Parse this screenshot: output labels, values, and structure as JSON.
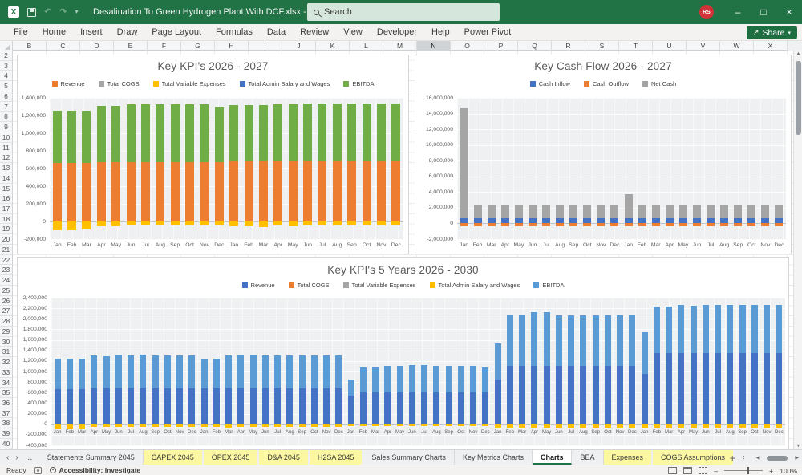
{
  "window": {
    "title": "Desalination To Green Hydrogen Plant With DCF.xlsx  -  Excel",
    "search_placeholder": "Search",
    "avatar": "RS"
  },
  "icons": {
    "app": "X",
    "minimize": "–",
    "restore": "□",
    "close": "×",
    "undo": "↶",
    "redo": "↷",
    "dropdown": "▾",
    "share": "↗",
    "tab_prev": "‹",
    "tab_next": "›",
    "tab_list": "…",
    "overflow": "…",
    "add_sheet": "+",
    "kebab": "…",
    "scroll_left": "◀",
    "scroll_right": "▶",
    "scroll_up": "▲",
    "scroll_down": "▼"
  },
  "ribbon": {
    "tabs": [
      "File",
      "Home",
      "Insert",
      "Draw",
      "Page Layout",
      "Formulas",
      "Data",
      "Review",
      "View",
      "Developer",
      "Help",
      "Power Pivot"
    ],
    "share_label": "Share"
  },
  "grid": {
    "columns": [
      "B",
      "C",
      "D",
      "E",
      "F",
      "G",
      "H",
      "I",
      "J",
      "K",
      "L",
      "M",
      "N",
      "O",
      "P",
      "Q",
      "R",
      "S",
      "T",
      "U",
      "V",
      "W",
      "X"
    ],
    "selected_column": "N",
    "row_start": 2,
    "row_end": 41
  },
  "sheet_tabs": {
    "tabs": [
      {
        "label": "Statements Summary 2045",
        "style": "plain"
      },
      {
        "label": "CAPEX 2045",
        "style": "yellow"
      },
      {
        "label": "OPEX 2045",
        "style": "yellow"
      },
      {
        "label": "D&A 2045",
        "style": "yellow"
      },
      {
        "label": "H2SA 2045",
        "style": "yellow"
      },
      {
        "label": "Sales Summary Charts",
        "style": "plain"
      },
      {
        "label": "Key Metrics Charts",
        "style": "plain"
      },
      {
        "label": "Charts",
        "style": "active"
      },
      {
        "label": "BEA",
        "style": "plain"
      },
      {
        "label": "Expenses",
        "style": "yellow"
      },
      {
        "label": "COGS Assumptions",
        "style": "yellow"
      }
    ]
  },
  "status_bar": {
    "ready": "Ready",
    "accessibility": "Accessibility: Investigate",
    "zoom_level": "100%"
  },
  "chart_data": [
    {
      "type": "stacked-bar",
      "title": "Key KPI's 2026 - 2027",
      "months": [
        "Jan",
        "Feb",
        "Mar",
        "Apr",
        "May",
        "Jun",
        "Jul",
        "Aug",
        "Sep",
        "Oct",
        "Nov",
        "Dec"
      ],
      "years": 2,
      "ylim": [
        -200000,
        1400000
      ],
      "ystep": 200000,
      "grid": true,
      "legend_position": "top",
      "legend": [
        {
          "label": "Revenue",
          "color": "#ED7D31"
        },
        {
          "label": "Total COGS",
          "color": "#A5A5A5"
        },
        {
          "label": "Total Variable Expenses",
          "color": "#FFC000"
        },
        {
          "label": "Total Admin Salary and Wages",
          "color": "#4472C4"
        },
        {
          "label": "EBITDA",
          "color": "#70AD47"
        }
      ],
      "series": [
        {
          "name": "Revenue",
          "color": "#ED7D31",
          "values": [
            665000,
            665000,
            665000,
            675000,
            675000,
            675000,
            675000,
            675000,
            675000,
            675000,
            675000,
            675000,
            680000,
            680000,
            680000,
            680000,
            680000,
            680000,
            680000,
            680000,
            680000,
            680000,
            680000,
            680000
          ]
        },
        {
          "name": "EBITDA",
          "color": "#70AD47",
          "values": [
            590000,
            590000,
            590000,
            635000,
            630000,
            650000,
            650000,
            655000,
            655000,
            655000,
            655000,
            625000,
            640000,
            640000,
            640000,
            650000,
            650000,
            655000,
            655000,
            655000,
            655000,
            655000,
            655000,
            655000
          ]
        },
        {
          "name": "Total Variable Expenses",
          "color": "#FFC000",
          "values": [
            -100000,
            -100000,
            -95000,
            -50000,
            -55000,
            -40000,
            -40000,
            -40000,
            -45000,
            -45000,
            -45000,
            -45000,
            -55000,
            -55000,
            -65000,
            -45000,
            -50000,
            -45000,
            -45000,
            -45000,
            -45000,
            -45000,
            -45000,
            -45000
          ]
        },
        {
          "name": "Total COGS",
          "color": "#A5A5A5",
          "values": []
        },
        {
          "name": "Total Admin Salary and Wages",
          "color": "#4472C4",
          "values": []
        }
      ]
    },
    {
      "type": "stacked-bar",
      "title": "Key Cash Flow 2026 - 2027",
      "months": [
        "Jan",
        "Feb",
        "Mar",
        "Apr",
        "May",
        "Jun",
        "Jul",
        "Aug",
        "Sep",
        "Oct",
        "Nov",
        "Dec"
      ],
      "years": 2,
      "ylim": [
        -2000000,
        16000000
      ],
      "ystep": 2000000,
      "grid": true,
      "legend_position": "top",
      "legend": [
        {
          "label": "Cash Inflow",
          "color": "#4472C4"
        },
        {
          "label": "Cash Outflow",
          "color": "#ED7D31"
        },
        {
          "label": "Net Cash",
          "color": "#A5A5A5"
        }
      ],
      "series": [
        {
          "name": "Cash Inflow",
          "color": "#4472C4",
          "values": [
            700000,
            700000,
            700000,
            700000,
            700000,
            700000,
            700000,
            700000,
            700000,
            700000,
            700000,
            700000,
            700000,
            700000,
            700000,
            700000,
            700000,
            700000,
            700000,
            700000,
            700000,
            700000,
            700000,
            700000
          ]
        },
        {
          "name": "Net Cash",
          "color": "#A5A5A5",
          "values": [
            14100000,
            1600000,
            1600000,
            1600000,
            1600000,
            1600000,
            1600000,
            1600000,
            1600000,
            1600000,
            1600000,
            1600000,
            3000000,
            1600000,
            1600000,
            1600000,
            1600000,
            1600000,
            1600000,
            1600000,
            1600000,
            1600000,
            1600000,
            1550000
          ]
        },
        {
          "name": "Cash Outflow",
          "color": "#ED7D31",
          "values": [
            -400000,
            -400000,
            -400000,
            -400000,
            -400000,
            -400000,
            -400000,
            -400000,
            -400000,
            -400000,
            -400000,
            -400000,
            -400000,
            -400000,
            -400000,
            -400000,
            -400000,
            -400000,
            -400000,
            -400000,
            -400000,
            -400000,
            -400000,
            -400000
          ]
        }
      ]
    },
    {
      "type": "stacked-bar",
      "title": "Key KPI's 5 Years 2026 - 2030",
      "months": [
        "Jan",
        "Feb",
        "Mar",
        "Apr",
        "May",
        "Jun",
        "Jul",
        "Aug",
        "Sep",
        "Oct",
        "Nov",
        "Dec"
      ],
      "years": 5,
      "ylim": [
        -400000,
        2400000
      ],
      "ystep": 200000,
      "grid": true,
      "legend_position": "top",
      "legend": [
        {
          "label": "Revenue",
          "color": "#4472C4"
        },
        {
          "label": "Total COGS",
          "color": "#ED7D31"
        },
        {
          "label": "Total Variable Expenses",
          "color": "#A5A5A5"
        },
        {
          "label": "Total Admin Salary and Wages",
          "color": "#FFC000"
        },
        {
          "label": "EBITDA",
          "color": "#5B9BD5"
        }
      ],
      "series": [
        {
          "name": "Revenue",
          "color": "#4472C4",
          "values": [
            665000,
            665000,
            665000,
            675000,
            675000,
            675000,
            675000,
            675000,
            675000,
            675000,
            675000,
            675000,
            680000,
            680000,
            680000,
            680000,
            680000,
            680000,
            680000,
            680000,
            680000,
            680000,
            680000,
            680000,
            550000,
            600000,
            600000,
            610000,
            610000,
            615000,
            615000,
            610000,
            610000,
            605000,
            605000,
            600000,
            850000,
            1100000,
            1100000,
            1110000,
            1110000,
            1100000,
            1100000,
            1100000,
            1100000,
            1100000,
            1100000,
            1100000,
            950000,
            1350000,
            1350000,
            1350000,
            1350000,
            1350000,
            1350000,
            1350000,
            1350000,
            1350000,
            1350000,
            1350000
          ]
        },
        {
          "name": "EBITDA",
          "color": "#5B9BD5",
          "values": [
            580000,
            580000,
            585000,
            625000,
            620000,
            630000,
            635000,
            640000,
            635000,
            635000,
            635000,
            635000,
            550000,
            560000,
            630000,
            630000,
            630000,
            630000,
            630000,
            630000,
            630000,
            630000,
            630000,
            620000,
            300000,
            470000,
            470000,
            500000,
            500000,
            505000,
            505000,
            500000,
            500000,
            495000,
            495000,
            480000,
            680000,
            980000,
            980000,
            1010000,
            1010000,
            960000,
            960000,
            960000,
            960000,
            960000,
            960000,
            970000,
            800000,
            880000,
            880000,
            920000,
            900000,
            920000,
            920000,
            920000,
            910000,
            920000,
            910000,
            920000
          ]
        },
        {
          "name": "Total Admin Salary and Wages",
          "color": "#FFC000",
          "values": [
            -95000,
            -95000,
            -90000,
            -50000,
            -50000,
            -45000,
            -45000,
            -45000,
            -45000,
            -45000,
            -45000,
            -45000,
            -55000,
            -55000,
            -60000,
            -45000,
            -45000,
            -45000,
            -45000,
            -45000,
            -45000,
            -45000,
            -45000,
            -45000,
            -40000,
            -40000,
            -40000,
            -40000,
            -40000,
            -40000,
            -40000,
            -40000,
            -40000,
            -40000,
            -40000,
            -40000,
            -60000,
            -70000,
            -70000,
            -70000,
            -70000,
            -70000,
            -70000,
            -70000,
            -70000,
            -70000,
            -70000,
            -70000,
            -80000,
            -80000,
            -80000,
            -80000,
            -80000,
            -80000,
            -80000,
            -80000,
            -80000,
            -80000,
            -80000,
            -80000
          ]
        },
        {
          "name": "Total COGS",
          "color": "#ED7D31",
          "values": []
        },
        {
          "name": "Total Variable Expenses",
          "color": "#A5A5A5",
          "values": []
        }
      ]
    }
  ]
}
